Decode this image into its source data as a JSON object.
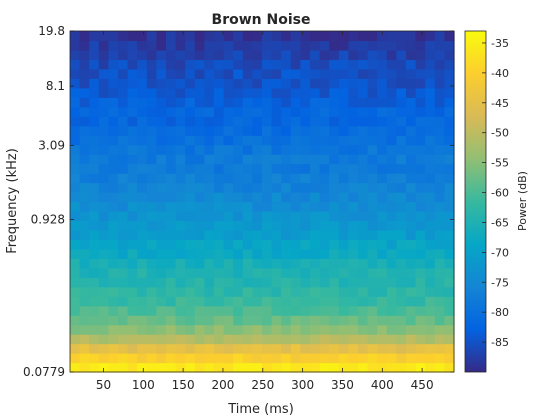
{
  "chart_data": {
    "type": "heatmap",
    "title": "Brown Noise",
    "xlabel": "Time (ms)",
    "ylabel": "Frequency (kHz)",
    "colorbar_label": "Power (dB)",
    "x_ticks": [
      50,
      100,
      150,
      200,
      250,
      300,
      350,
      400,
      450
    ],
    "x_range": [
      8,
      490
    ],
    "y_scale": "log",
    "y_ticks": [
      "0.0779",
      "0.928",
      "3.09",
      "8.1",
      "19.8"
    ],
    "y_tick_values": [
      0.0779,
      0.928,
      3.09,
      8.1,
      19.8
    ],
    "y_range": [
      0.0779,
      19.8
    ],
    "clim": [
      -90,
      -33
    ],
    "colorbar_ticks": [
      -35,
      -40,
      -45,
      -50,
      -55,
      -60,
      -65,
      -70,
      -75,
      -80,
      -85
    ],
    "colormap": "parula",
    "time_bins": 40,
    "freq_bins": 36,
    "power_db_by_freq_bin_low_to_high": [
      -36,
      -40,
      -45,
      -51,
      -55,
      -58,
      -60,
      -62,
      -63,
      -64,
      -65,
      -66,
      -68,
      -69,
      -71,
      -72,
      -73,
      -74,
      -75,
      -76,
      -77,
      -78,
      -78,
      -79,
      -80,
      -81,
      -82,
      -82,
      -83,
      -84,
      -85,
      -85,
      -86,
      -87,
      -88,
      -89
    ]
  }
}
